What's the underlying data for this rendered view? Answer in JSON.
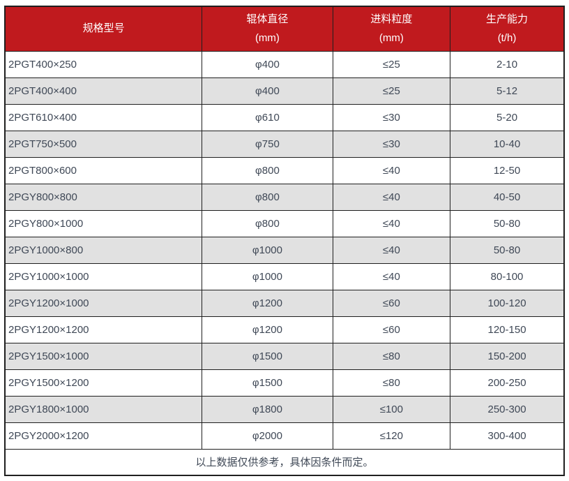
{
  "colors": {
    "header_bg": "#c01a1e",
    "header_text": "#ffffff",
    "row_stripe": "#e1e1e1",
    "border": "#1f1f1f",
    "body_text": "#3f4856"
  },
  "table": {
    "columns": [
      {
        "title": "规格型号",
        "unit": ""
      },
      {
        "title": "辊体直径",
        "unit": "(mm)"
      },
      {
        "title": "进料粒度",
        "unit": "(mm)"
      },
      {
        "title": "生产能力",
        "unit": "(t/h)"
      }
    ],
    "rows": [
      [
        "2PGT400×250",
        "φ400",
        "≤25",
        "2-10"
      ],
      [
        "2PGT400×400",
        "φ400",
        "≤25",
        "5-12"
      ],
      [
        "2PGT610×400",
        "φ610",
        "≤30",
        "5-20"
      ],
      [
        "2PGT750×500",
        "φ750",
        "≤30",
        "10-40"
      ],
      [
        "2PGT800×600",
        "φ800",
        "≤40",
        "12-50"
      ],
      [
        "2PGY800×800",
        "φ800",
        "≤40",
        "40-50"
      ],
      [
        "2PGY800×1000",
        "φ800",
        "≤40",
        "50-80"
      ],
      [
        "2PGY1000×800",
        "φ1000",
        "≤40",
        "50-80"
      ],
      [
        "2PGY1000×1000",
        "φ1000",
        "≤40",
        "80-100"
      ],
      [
        "2PGY1200×1000",
        "φ1200",
        "≤60",
        "100-120"
      ],
      [
        "2PGY1200×1200",
        "φ1200",
        "≤60",
        "120-150"
      ],
      [
        "2PGY1500×1000",
        "φ1500",
        "≤80",
        "150-200"
      ],
      [
        "2PGY1500×1200",
        "φ1500",
        "≤80",
        "200-250"
      ],
      [
        "2PGY1800×1000",
        "φ1800",
        "≤100",
        "250-300"
      ],
      [
        "2PGY2000×1200",
        "φ2000",
        "≤120",
        "300-400"
      ]
    ],
    "footer_note": "以上数据仅供参考，具体因条件而定。"
  }
}
